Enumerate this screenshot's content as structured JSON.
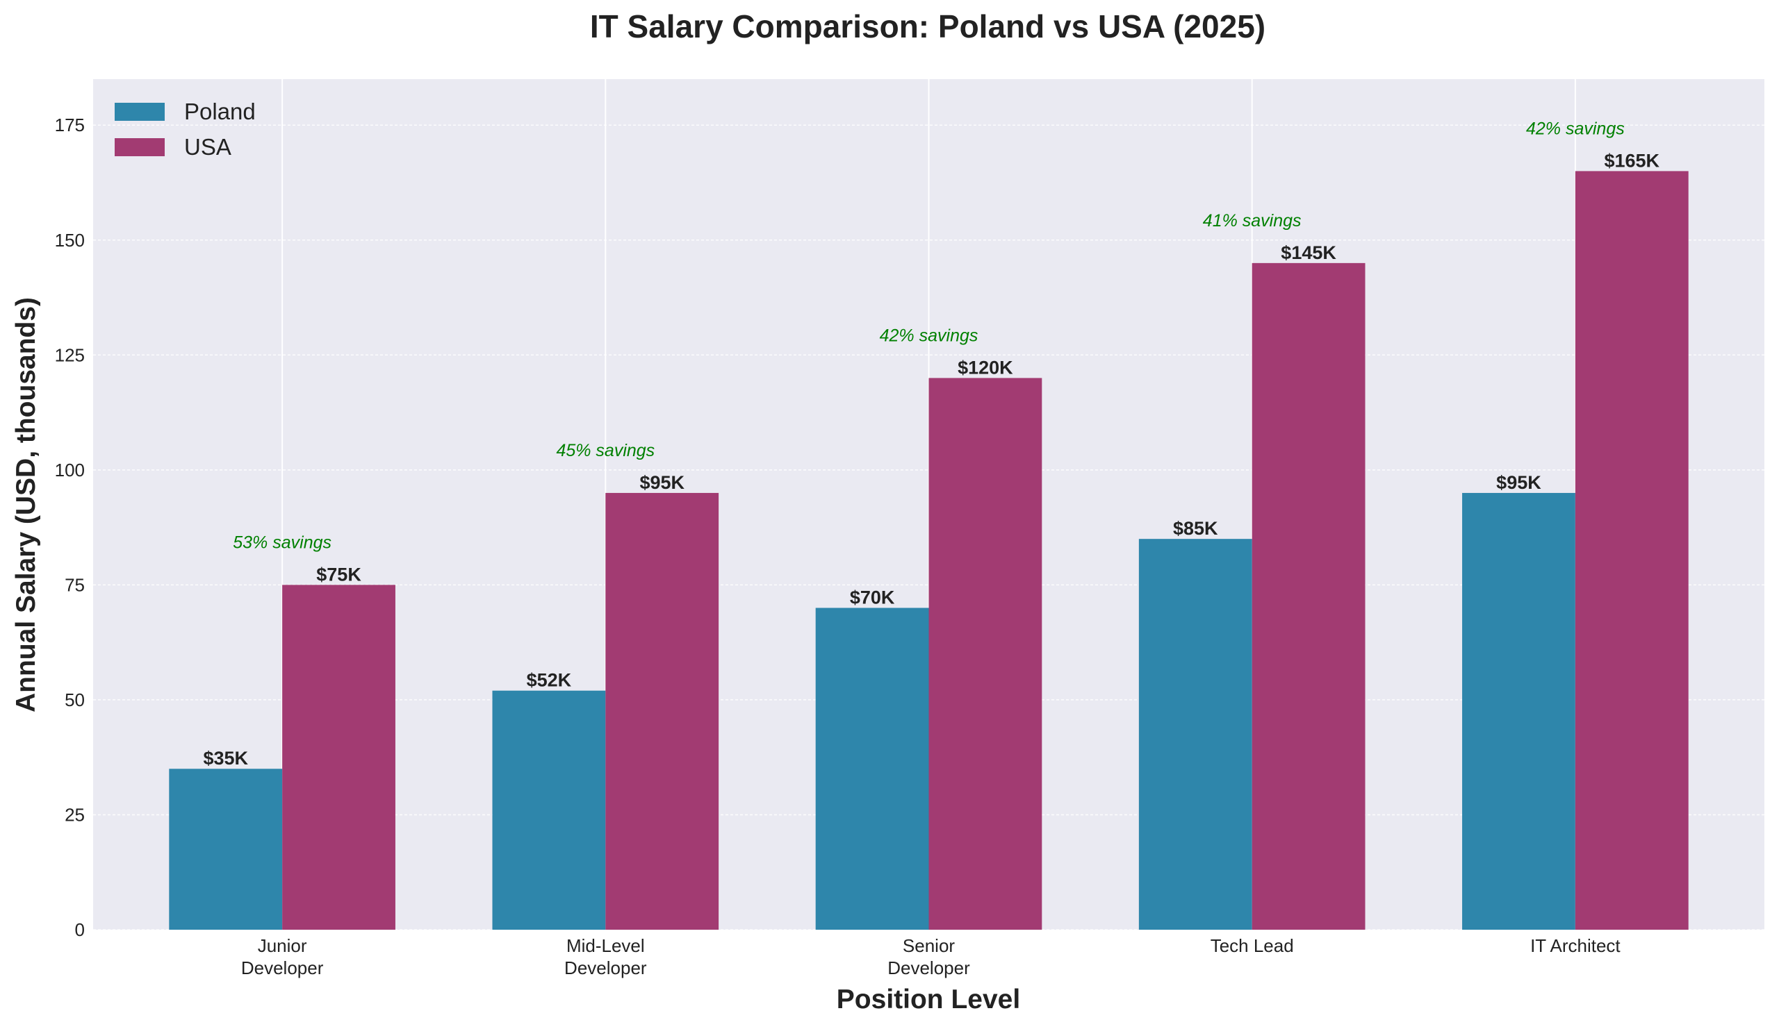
{
  "chart_data": {
    "type": "bar",
    "title": "IT Salary Comparison: Poland vs USA (2025)",
    "xlabel": "Position Level",
    "ylabel": "Annual Salary (USD, thousands)",
    "categories": [
      [
        "Junior",
        "Developer"
      ],
      [
        "Mid-Level",
        "Developer"
      ],
      [
        "Senior",
        "Developer"
      ],
      [
        "Tech Lead"
      ],
      [
        "IT Architect"
      ]
    ],
    "series": [
      {
        "name": "Poland",
        "color": "#2E86AB",
        "values": [
          35,
          52,
          70,
          85,
          95
        ],
        "labels": [
          "$35K",
          "$52K",
          "$70K",
          "$85K",
          "$95K"
        ]
      },
      {
        "name": "USA",
        "color": "#A23B72",
        "values": [
          75,
          95,
          120,
          145,
          165
        ],
        "labels": [
          "$75K",
          "$95K",
          "$120K",
          "$145K",
          "$165K"
        ]
      }
    ],
    "annotations": [
      "53% savings",
      "45% savings",
      "42% savings",
      "41% savings",
      "42% savings"
    ],
    "annotation_color": "#008000",
    "ylim": [
      0,
      185
    ],
    "yticks": [
      0,
      25,
      50,
      75,
      100,
      125,
      150,
      175
    ],
    "grid": true,
    "legend_position": "top-left",
    "background": "#EAEAF2"
  }
}
